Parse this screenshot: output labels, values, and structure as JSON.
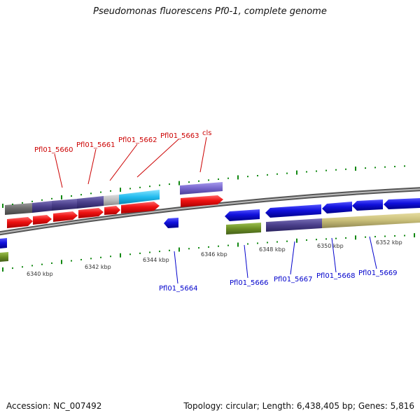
{
  "title": "Pseudomonas fluorescens Pf0-1, complete genome",
  "accession": "Accession: NC_007492",
  "summary": "Topology: circular; Length: 6,438,405 bp; Genes: 5,816",
  "scale_labels": [
    "6340 kbp",
    "6342 kbp",
    "6344 kbp",
    "6346 kbp",
    "6348 kbp",
    "6350 kbp",
    "6352 kbp"
  ],
  "upper_labels": [
    "Pfl01_5660",
    "Pfl01_5661",
    "Pfl01_5662",
    "Pfl01_5663",
    "cls"
  ],
  "lower_labels": [
    "Pfl01_5664",
    "Pfl01_5666",
    "Pfl01_5667",
    "Pfl01_5668",
    "Pfl01_5669"
  ],
  "colors": {
    "upper_label": "#cc0000",
    "lower_label": "#0000cc",
    "tick": "#118811",
    "backbone": "#888888",
    "red_gene": "#ee1111",
    "blue_gene": "#1111dd",
    "green_gene": "#6b8e23",
    "olive_gene": "#c8be78",
    "indigo_gene": "#4a3f8a",
    "cyan_gene": "#22bbee",
    "lavender_gene": "#7766cc",
    "gray_gene": "#666666"
  }
}
